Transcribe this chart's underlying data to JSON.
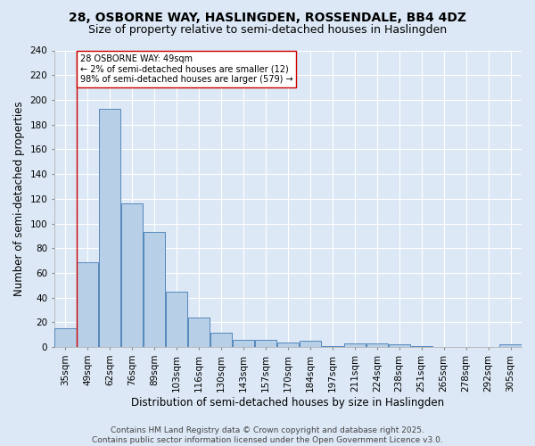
{
  "title": "28, OSBORNE WAY, HASLINGDEN, ROSSENDALE, BB4 4DZ",
  "subtitle": "Size of property relative to semi-detached houses in Haslingden",
  "xlabel": "Distribution of semi-detached houses by size in Haslingden",
  "ylabel": "Number of semi-detached properties",
  "categories": [
    "35sqm",
    "49sqm",
    "62sqm",
    "76sqm",
    "89sqm",
    "103sqm",
    "116sqm",
    "130sqm",
    "143sqm",
    "157sqm",
    "170sqm",
    "184sqm",
    "197sqm",
    "211sqm",
    "224sqm",
    "238sqm",
    "251sqm",
    "265sqm",
    "278sqm",
    "292sqm",
    "305sqm"
  ],
  "values": [
    15,
    69,
    193,
    116,
    93,
    45,
    24,
    12,
    6,
    6,
    4,
    5,
    1,
    3,
    3,
    2,
    1,
    0,
    0,
    0,
    2
  ],
  "bar_color": "#b8cfe8",
  "bar_edge_color": "#5588bb",
  "red_line_index": 1,
  "annotation_text": "28 OSBORNE WAY: 49sqm\n← 2% of semi-detached houses are smaller (12)\n98% of semi-detached houses are larger (579) →",
  "annotation_box_color": "#ffffff",
  "annotation_box_edge": "#cc0000",
  "vline_color": "#cc0000",
  "ylim": [
    0,
    240
  ],
  "yticks": [
    0,
    20,
    40,
    60,
    80,
    100,
    120,
    140,
    160,
    180,
    200,
    220,
    240
  ],
  "footer_line1": "Contains HM Land Registry data © Crown copyright and database right 2025.",
  "footer_line2": "Contains public sector information licensed under the Open Government Licence v3.0.",
  "bg_color": "#dce8f5",
  "plot_bg_color": "#dce8f5",
  "title_fontsize": 10,
  "subtitle_fontsize": 9,
  "xlabel_fontsize": 8.5,
  "ylabel_fontsize": 8.5,
  "tick_fontsize": 7.5,
  "annot_fontsize": 7,
  "footer_fontsize": 6.5
}
